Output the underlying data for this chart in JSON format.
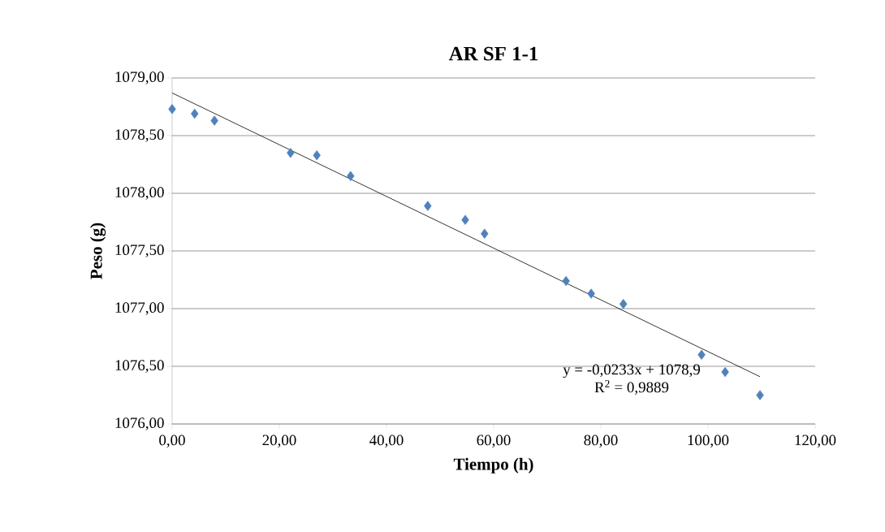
{
  "chart_data": {
    "type": "scatter",
    "title": "AR SF 1-1",
    "xlabel": "Tiempo (h)",
    "ylabel": "Peso (g)",
    "xlim": [
      0,
      120
    ],
    "ylim": [
      1076,
      1079
    ],
    "xticks": [
      {
        "value": 0,
        "label": "0,00"
      },
      {
        "value": 20,
        "label": "20,00"
      },
      {
        "value": 40,
        "label": "40,00"
      },
      {
        "value": 60,
        "label": "60,00"
      },
      {
        "value": 80,
        "label": "80,00"
      },
      {
        "value": 100,
        "label": "100,00"
      },
      {
        "value": 120,
        "label": "120,00"
      }
    ],
    "yticks": [
      {
        "value": 1076,
        "label": "1076,00"
      },
      {
        "value": 1076.5,
        "label": "1076,50"
      },
      {
        "value": 1077,
        "label": "1077,00"
      },
      {
        "value": 1077.5,
        "label": "1077,50"
      },
      {
        "value": 1078,
        "label": "1078,00"
      },
      {
        "value": 1078.5,
        "label": "1078,50"
      },
      {
        "value": 1079,
        "label": "1079,00"
      }
    ],
    "grid": "y",
    "series": [
      {
        "marker": "diamond",
        "color": "#4f81bd",
        "x": [
          0,
          4.2,
          7.9,
          22.1,
          27.0,
          33.3,
          47.7,
          54.7,
          58.3,
          73.5,
          78.2,
          84.2,
          98.8,
          103.2,
          109.7
        ],
        "values": [
          1078.73,
          1078.69,
          1078.63,
          1078.35,
          1078.33,
          1078.15,
          1077.89,
          1077.77,
          1077.65,
          1077.24,
          1077.13,
          1077.04,
          1076.6,
          1076.45,
          1076.25
        ]
      },
      {
        "type": "line",
        "marker": "none",
        "line_style": "solid",
        "color": "#000000",
        "x": [
          0,
          109.7
        ],
        "values": [
          1078.87,
          1076.41
        ]
      }
    ],
    "annotations": [
      "y = -0,0233x + 1078,9",
      "R$^{2}$ = 0,9889"
    ]
  }
}
